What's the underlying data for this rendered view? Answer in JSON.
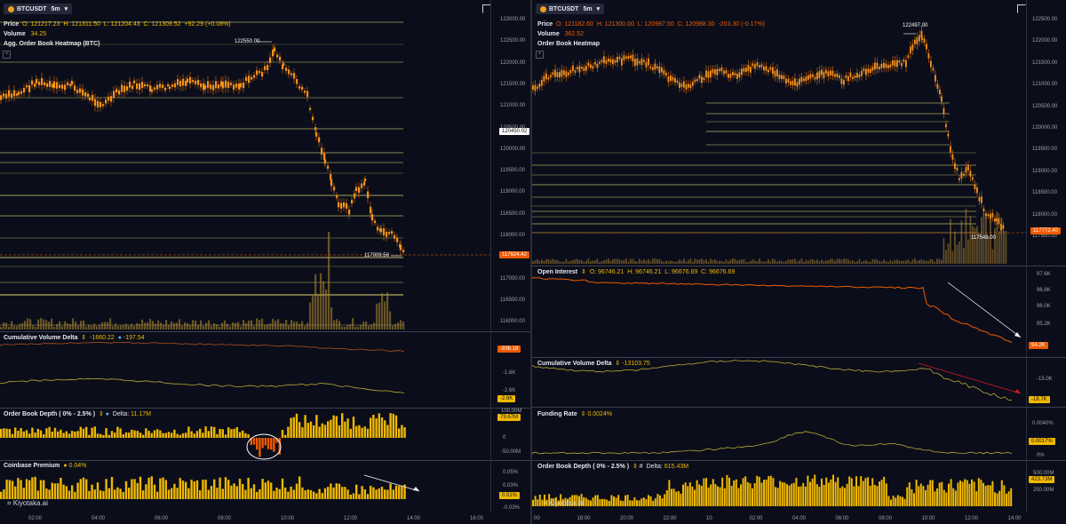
{
  "left": {
    "symbol": "BTCUSDT",
    "interval": "5m",
    "ohlc": {
      "label": "Price",
      "o": "O: 121217.23",
      "h": "H: 121311.50",
      "l": "L: 121204.43",
      "c": "C: 121309.52",
      "chg": "+92.29",
      "pct": "(+0.08%)"
    },
    "volume": {
      "label": "Volume",
      "value": "34.25"
    },
    "heatmap_title": "Agg. Order Book Heatmap (BTC)",
    "high_label": "122550.00",
    "low_label": "117009.58",
    "price_axis": [
      "123000.00",
      "122500.00",
      "122000.00",
      "121500.00",
      "121000.00",
      "120500.00",
      "120000.00",
      "119500.00",
      "119000.00",
      "118500.00",
      "118000.00",
      "117500.00",
      "117000.00",
      "116500.00",
      "116000.00"
    ],
    "crosshair_price": "120450.02",
    "current_price": "117624.42",
    "cvd": {
      "title": "Cumulative Volume Delta",
      "v1": "-1660.22",
      "v2": "-197.54",
      "axis": [
        "-1.6K",
        "-2.6K"
      ],
      "tag1": "-936.18",
      "tag2": "-2.6K"
    },
    "obd": {
      "title": "Order Book Depth ( 0% - 2.5% )",
      "delta_label": "Delta:",
      "delta_value": "11.17M",
      "axis": [
        "100.00M",
        "50.00M",
        "0",
        "-50.00M"
      ],
      "tag": "79.67M"
    },
    "cbp": {
      "title": "Coinbase Premium",
      "value": "0.04%",
      "axis": [
        "0.05%",
        "0.03%",
        "-0.03%",
        "-0.05%"
      ],
      "tag": "0.01%"
    },
    "time_axis": [
      "02:00",
      "04:00",
      "06:00",
      "08:00",
      "10:00",
      "12:00",
      "14:00",
      "16:00"
    ],
    "watermark": "Kiyotaka.ai"
  },
  "right": {
    "symbol": "BTCUSDT",
    "interval": "5m",
    "ohlc": {
      "label": "Price",
      "o": "O: 121182.60",
      "h": "H: 121300.00",
      "l": "L: 120987.50",
      "c": "C: 120988.30",
      "chg": "-203.30",
      "pct": "(-0.17%)"
    },
    "volume": {
      "label": "Volume",
      "value": "362.52"
    },
    "heatmap_title": "Order Book Heatmap",
    "high_label": "122497.00",
    "low_label": "117549.00",
    "price_axis": [
      "122500.00",
      "122000.00",
      "121500.00",
      "121000.00",
      "120500.00",
      "120000.00",
      "119500.00",
      "119000.00",
      "118500.00",
      "118000.00",
      "117500.00"
    ],
    "current_price": "117772.40",
    "oi": {
      "title": "Open Interest",
      "o": "O: 96746.21",
      "h": "H: 96746.21",
      "l": "L: 96676.69",
      "c": "C: 96676.69",
      "axis": [
        "97.6K",
        "96.8K",
        "96.0K",
        "95.2K"
      ],
      "tag": "94.2K"
    },
    "cvd": {
      "title": "Cumulative Volume Delta",
      "value": "-13103.75",
      "axis": [
        "-15.0K"
      ],
      "tag": "-18.7K"
    },
    "funding": {
      "title": "Funding Rate",
      "value": "0.0024%",
      "axis": [
        "0.0040%",
        "0%"
      ],
      "tag": "0.0017%"
    },
    "obd": {
      "title": "Order Book Depth ( 0% - 2.5% )",
      "delta_label": "Delta:",
      "delta_value": "615.43M",
      "axis": [
        "500.00M",
        "250.00M"
      ],
      "tag": "423.73M"
    },
    "time_axis": [
      "00",
      "18:00",
      "20:00",
      "22:00",
      "10",
      "02:00",
      "04:00",
      "06:00",
      "08:00",
      "10:00",
      "12:00",
      "14:00"
    ],
    "watermark": "Kiyotaka.ai"
  },
  "colors": {
    "bg": "#0b0e1a",
    "candle": "#f7931a",
    "wick": "#e07010",
    "heat": "#e9e27a",
    "up": "#f0b800",
    "down": "#f05a00",
    "cvd": "#b8a838",
    "white": "#ffffff",
    "red": "#d01a2a"
  }
}
